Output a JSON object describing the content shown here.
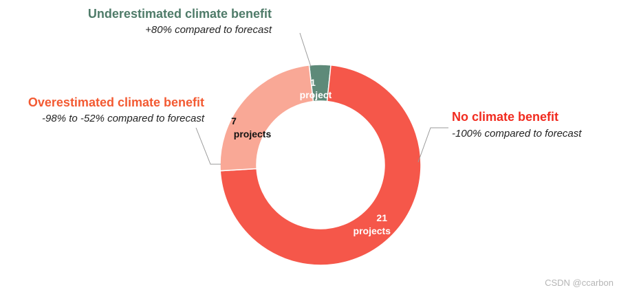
{
  "chart_data": {
    "type": "pie",
    "variant": "donut",
    "title": "",
    "unit": "projects",
    "series": [
      {
        "name": "Underestimated climate benefit",
        "value": 1,
        "label_number": "1",
        "label_word": "project",
        "description": "+80% compared to forecast",
        "color": "#5e8a79",
        "title_color": "#4f7b69",
        "label_color": "#ffffff"
      },
      {
        "name": "No climate benefit",
        "value": 21,
        "label_number": "21",
        "label_word": "projects",
        "description": "-100% compared to forecast",
        "color": "#f5574a",
        "title_color": "#f12b1f",
        "label_color": "#ffffff"
      },
      {
        "name": "Overestimated climate benefit",
        "value": 7,
        "label_number": "7",
        "label_word": "projects",
        "description": "-98% to -52% compared to forecast",
        "color": "#f9a896",
        "title_color": "#f35a32",
        "label_color": "#111111"
      }
    ],
    "legend": "callouts"
  },
  "watermark": "CSDN @ccarbon"
}
